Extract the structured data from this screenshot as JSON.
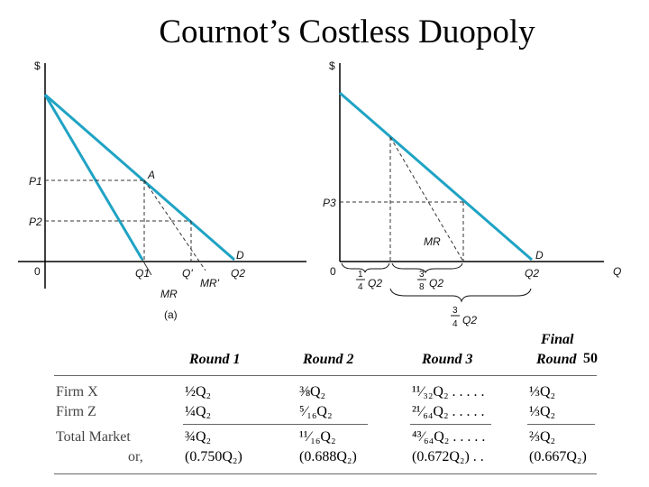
{
  "title": "Cournot’s Costless Duopoly",
  "colors": {
    "demand_line": "#1fa3c4",
    "axis": "#000000",
    "dash": "#333333"
  },
  "panel_a": {
    "y_axis": "$",
    "p1": "P1",
    "p2": "P2",
    "point_a": "A",
    "origin": "0",
    "q1": "Q1",
    "q_prime": "Q'",
    "q2": "Q2",
    "d": "D",
    "mr": "MR",
    "mr_prime": "MR'",
    "caption": "(a)"
  },
  "panel_b": {
    "y_axis": "$",
    "x_axis": "Q",
    "p3": "P3",
    "origin": "0",
    "mr": "MR",
    "d": "D",
    "q2": "Q2",
    "frac_a": {
      "num": "1",
      "den": "4",
      "var": "Q2"
    },
    "frac_b": {
      "num": "3",
      "den": "8",
      "var": "Q2"
    },
    "frac_c": {
      "num": "3",
      "den": "4",
      "var": "Q2"
    }
  },
  "table": {
    "headers": [
      "Round 1",
      "Round 2",
      "Round 3",
      "Final",
      "Round"
    ],
    "page_number": "50",
    "rows": [
      {
        "label": "Firm X",
        "values": [
          "½Q₂",
          "⅜Q₂",
          "¹¹⁄₃₂Q₂ . . . . .",
          "⅓Q₂"
        ]
      },
      {
        "label": "Firm Z",
        "values": [
          "¼Q₂",
          "⁵⁄₁₆Q₂",
          "²¹⁄₆₄Q₂ . . . . .",
          "⅓Q₂"
        ]
      },
      {
        "label": "Total Market",
        "values": [
          "¾Q₂",
          "¹¹⁄₁₆Q₂",
          "⁴³⁄₆₄Q₂ . . . . .",
          "⅔Q₂"
        ]
      },
      {
        "label": "or,",
        "values": [
          "(0.750Q₂)",
          "(0.688Q₂)",
          "(0.672Q₂) . .",
          "(0.667Q₂)"
        ]
      }
    ]
  }
}
